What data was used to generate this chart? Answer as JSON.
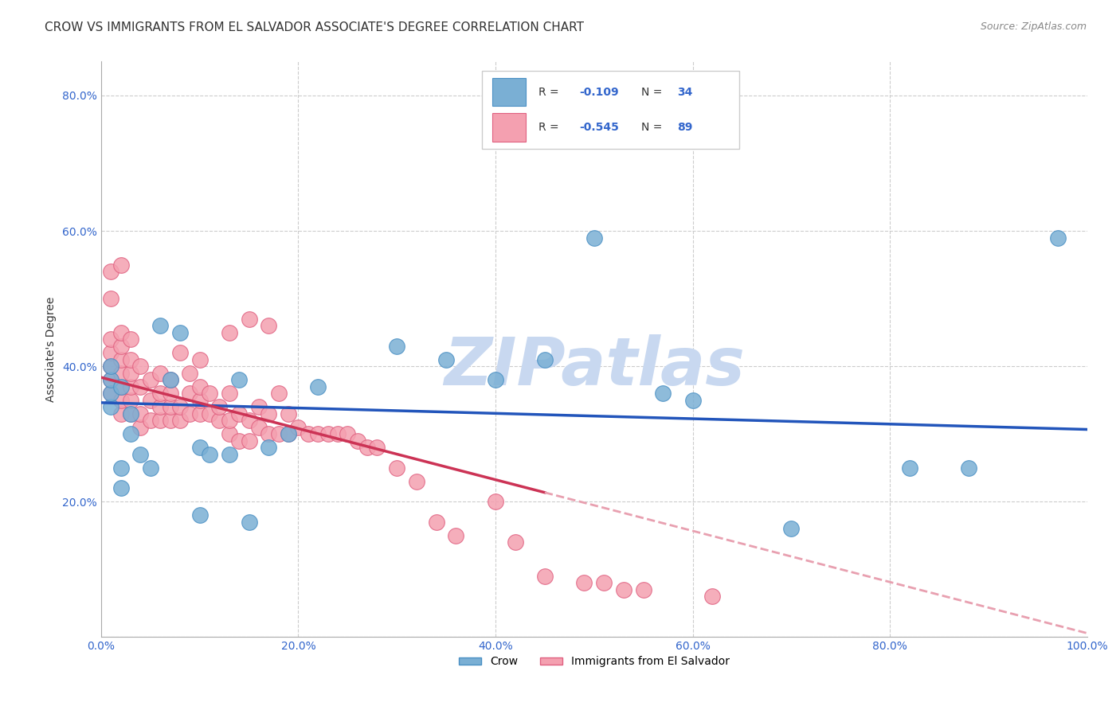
{
  "title": "CROW VS IMMIGRANTS FROM EL SALVADOR ASSOCIATE'S DEGREE CORRELATION CHART",
  "source": "Source: ZipAtlas.com",
  "xlabel": "",
  "ylabel": "Associate's Degree",
  "xlim": [
    0.0,
    1.0
  ],
  "ylim": [
    0.0,
    0.85
  ],
  "xticks": [
    0.0,
    0.2,
    0.4,
    0.6,
    0.8,
    1.0
  ],
  "xticklabels": [
    "0.0%",
    "20.0%",
    "40.0%",
    "60.0%",
    "80.0%",
    "100.0%"
  ],
  "yticks": [
    0.0,
    0.2,
    0.4,
    0.6,
    0.8
  ],
  "yticklabels": [
    "",
    "20.0%",
    "40.0%",
    "60.0%",
    "80.0%"
  ],
  "background_color": "#ffffff",
  "grid_color": "#cccccc",
  "watermark": "ZIPatlas",
  "watermark_color": "#c8d8f0",
  "crow_color": "#7aafd4",
  "crow_edge_color": "#4a90c4",
  "imm_color": "#f4a0b0",
  "imm_edge_color": "#e06080",
  "trend_crow_color": "#2255bb",
  "trend_imm_solid_color": "#cc3355",
  "trend_imm_dash_color": "#e8a0b0",
  "crow_R": -0.109,
  "crow_N": 34,
  "imm_R": -0.545,
  "imm_N": 89,
  "legend_text_color": "#3366cc",
  "crow_x": [
    0.01,
    0.01,
    0.01,
    0.01,
    0.02,
    0.02,
    0.02,
    0.03,
    0.03,
    0.04,
    0.05,
    0.06,
    0.07,
    0.08,
    0.1,
    0.1,
    0.11,
    0.13,
    0.14,
    0.15,
    0.17,
    0.19,
    0.22,
    0.3,
    0.35,
    0.4,
    0.45,
    0.5,
    0.57,
    0.6,
    0.7,
    0.82,
    0.88,
    0.97
  ],
  "crow_y": [
    0.34,
    0.36,
    0.38,
    0.4,
    0.22,
    0.25,
    0.37,
    0.33,
    0.3,
    0.27,
    0.25,
    0.46,
    0.38,
    0.45,
    0.18,
    0.28,
    0.27,
    0.27,
    0.38,
    0.17,
    0.28,
    0.3,
    0.37,
    0.43,
    0.41,
    0.38,
    0.41,
    0.59,
    0.36,
    0.35,
    0.16,
    0.25,
    0.25,
    0.59
  ],
  "imm_x": [
    0.01,
    0.01,
    0.01,
    0.01,
    0.01,
    0.01,
    0.01,
    0.02,
    0.02,
    0.02,
    0.02,
    0.02,
    0.02,
    0.02,
    0.02,
    0.03,
    0.03,
    0.03,
    0.03,
    0.03,
    0.03,
    0.04,
    0.04,
    0.04,
    0.04,
    0.05,
    0.05,
    0.05,
    0.06,
    0.06,
    0.06,
    0.06,
    0.07,
    0.07,
    0.07,
    0.07,
    0.08,
    0.08,
    0.08,
    0.09,
    0.09,
    0.09,
    0.1,
    0.1,
    0.1,
    0.1,
    0.11,
    0.11,
    0.12,
    0.12,
    0.13,
    0.13,
    0.13,
    0.13,
    0.14,
    0.14,
    0.15,
    0.15,
    0.15,
    0.16,
    0.16,
    0.17,
    0.17,
    0.17,
    0.18,
    0.18,
    0.19,
    0.19,
    0.2,
    0.21,
    0.22,
    0.23,
    0.24,
    0.25,
    0.26,
    0.27,
    0.28,
    0.3,
    0.32,
    0.34,
    0.36,
    0.4,
    0.42,
    0.45,
    0.49,
    0.51,
    0.53,
    0.55,
    0.62
  ],
  "imm_y": [
    0.36,
    0.38,
    0.4,
    0.42,
    0.44,
    0.5,
    0.54,
    0.33,
    0.35,
    0.37,
    0.39,
    0.41,
    0.43,
    0.45,
    0.55,
    0.33,
    0.35,
    0.37,
    0.39,
    0.41,
    0.44,
    0.31,
    0.33,
    0.37,
    0.4,
    0.32,
    0.35,
    0.38,
    0.32,
    0.34,
    0.36,
    0.39,
    0.32,
    0.34,
    0.36,
    0.38,
    0.32,
    0.34,
    0.42,
    0.33,
    0.36,
    0.39,
    0.33,
    0.35,
    0.37,
    0.41,
    0.33,
    0.36,
    0.32,
    0.34,
    0.3,
    0.32,
    0.36,
    0.45,
    0.29,
    0.33,
    0.29,
    0.32,
    0.47,
    0.31,
    0.34,
    0.3,
    0.33,
    0.46,
    0.3,
    0.36,
    0.3,
    0.33,
    0.31,
    0.3,
    0.3,
    0.3,
    0.3,
    0.3,
    0.29,
    0.28,
    0.28,
    0.25,
    0.23,
    0.17,
    0.15,
    0.2,
    0.14,
    0.09,
    0.08,
    0.08,
    0.07,
    0.07,
    0.06
  ],
  "title_fontsize": 11,
  "axis_label_fontsize": 10,
  "tick_fontsize": 10,
  "source_fontsize": 9
}
